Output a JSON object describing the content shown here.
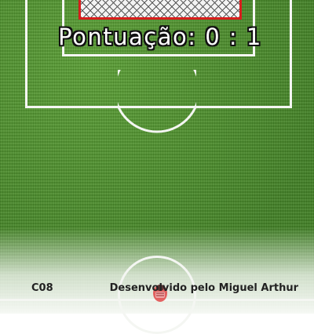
{
  "game": {
    "score_label": "Pontuação: 0 : 1"
  },
  "footer": {
    "code": "C08",
    "credit": "Desenvolvido pelo Miguel Arthur"
  },
  "colors": {
    "grass": "#4a8f2c",
    "lines": "#f4f6f2",
    "net_frame": "#d81d1d",
    "player_kit": "#e04848"
  },
  "icons": {
    "player": "player-sprite-icon"
  }
}
